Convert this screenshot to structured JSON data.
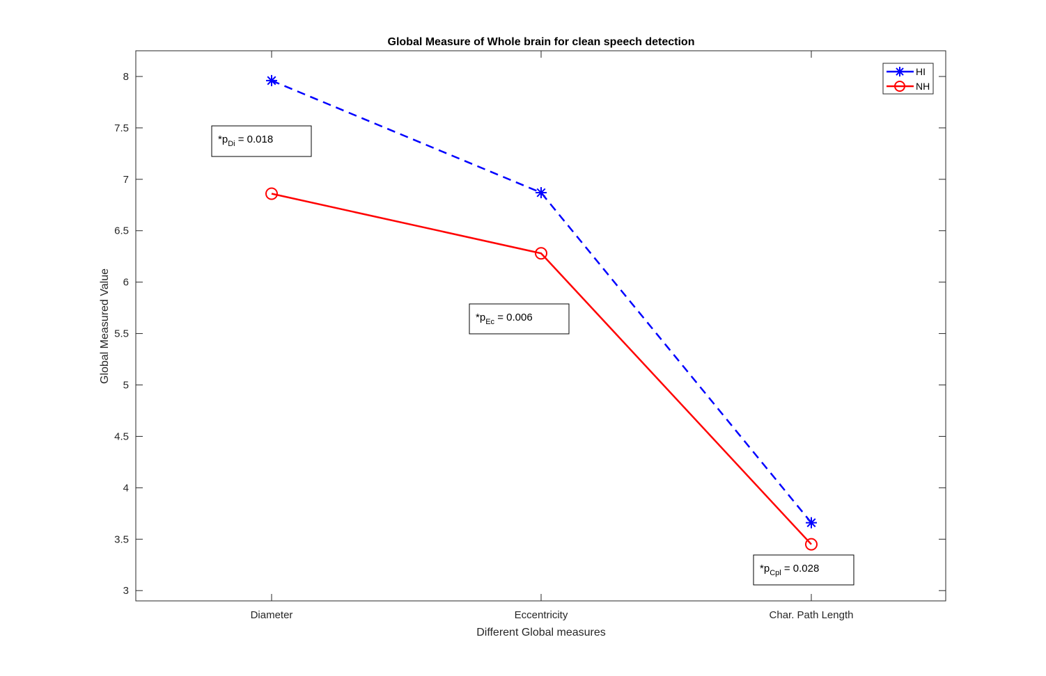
{
  "chart_data": {
    "type": "line",
    "title": "Global Measure of Whole brain for clean speech detection",
    "xlabel": "Different Global measures",
    "ylabel": "Global Measured Value",
    "categories": [
      "Diameter",
      "Eccentricity",
      "Char. Path Length"
    ],
    "ylim": [
      2.9,
      8.25
    ],
    "yticks": [
      3,
      3.5,
      4,
      4.5,
      5,
      5.5,
      6,
      6.5,
      7,
      7.5,
      8
    ],
    "ytick_labels": [
      "3",
      "3.5",
      "4",
      "4.5",
      "5",
      "5.5",
      "6",
      "6.5",
      "7",
      "7.5",
      "8"
    ],
    "grid": false,
    "legend_position": "top-right",
    "series": [
      {
        "name": "HI",
        "values": [
          7.96,
          6.87,
          3.66
        ],
        "color": "#0000ff",
        "line_style": "dashed",
        "marker": "asterisk"
      },
      {
        "name": "NH",
        "values": [
          6.86,
          6.28,
          3.45
        ],
        "color": "#ff0000",
        "line_style": "solid",
        "marker": "circle"
      }
    ],
    "annotations": [
      {
        "prefix": "*p",
        "subscript": "Di",
        "text": " =  0.018"
      },
      {
        "prefix": "*p",
        "subscript": "Ec",
        "text": " =  0.006"
      },
      {
        "prefix": "*p",
        "subscript": "Cpl",
        "text": " =  0.028"
      }
    ]
  }
}
